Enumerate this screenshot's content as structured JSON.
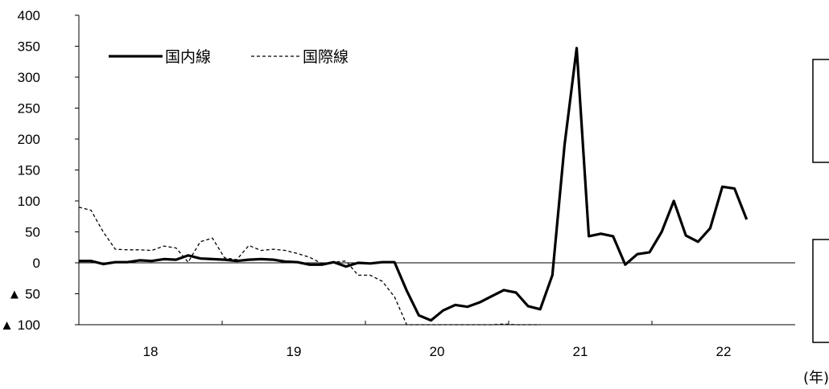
{
  "chart_data": {
    "type": "line",
    "title": "",
    "xlabel": "",
    "ylabel": "",
    "x_unit_label": "(年)",
    "ylim": [
      -100,
      400
    ],
    "y_ticks": [
      400,
      350,
      300,
      250,
      200,
      150,
      100,
      50,
      0,
      -50,
      -100
    ],
    "y_tick_labels": [
      "400",
      "350",
      "300",
      "250",
      "200",
      "150",
      "100",
      "50",
      "0",
      "▲ 50",
      "▲ 100"
    ],
    "x_period_labels": [
      "18",
      "19",
      "20",
      "21",
      "22"
    ],
    "months_per_year": 12,
    "grid": false,
    "legend_position": "top-left",
    "series": [
      {
        "name": "国内線",
        "style": "solid",
        "color": "#000000",
        "values": [
          3,
          3,
          -2,
          1,
          1,
          4,
          3,
          6,
          5,
          12,
          7,
          6,
          5,
          3,
          5,
          6,
          5,
          2,
          1,
          -3,
          -3,
          1,
          -6,
          0,
          -1,
          1,
          1,
          -45,
          -85,
          -93,
          -77,
          -68,
          -71,
          -64,
          -54,
          -44,
          -48,
          -70,
          -75,
          -20,
          190,
          347,
          43,
          47,
          43,
          -3,
          14,
          17,
          50,
          100,
          44,
          34,
          56,
          123,
          120,
          70
        ]
      },
      {
        "name": "国際線",
        "style": "dashed",
        "color": "#000000",
        "values": [
          90,
          85,
          50,
          22,
          21,
          21,
          20,
          27,
          24,
          1,
          34,
          40,
          8,
          5,
          28,
          20,
          22,
          20,
          15,
          9,
          -1,
          1,
          3,
          -20,
          -20,
          -30,
          -55,
          -100,
          -100,
          -100,
          -100,
          -100,
          -100,
          -100,
          -100,
          -99,
          -100,
          -100,
          -100
        ]
      }
    ]
  }
}
